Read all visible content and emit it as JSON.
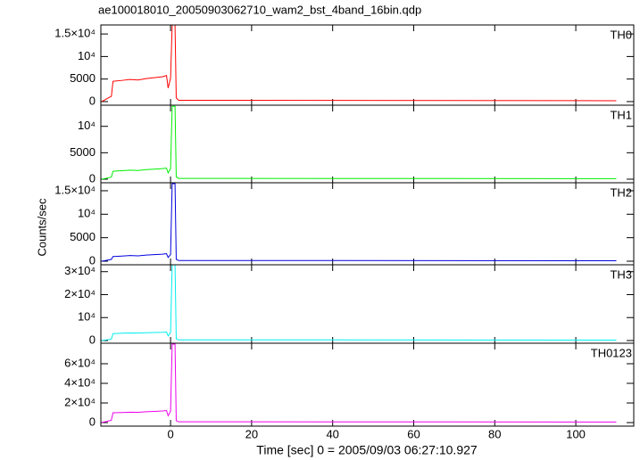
{
  "title": "ae100018010_20050903062710_wam2_bst_4band_16bin.qdp",
  "y_label": "Counts/sec",
  "x_label": "Time [sec] 0 = 2005/09/03 06:27:10.927",
  "chart_data": [
    {
      "type": "line",
      "xlim": [
        -17.2,
        114.3
      ],
      "xticks": [
        0,
        20,
        40,
        60,
        80,
        100
      ],
      "ylim": [
        -800,
        17000
      ],
      "yticks": [
        0,
        5000,
        {
          "value": 10000,
          "label": "10⁴"
        },
        {
          "value": 15000,
          "label": "1.5×10⁴"
        }
      ],
      "x": [
        -17,
        -15,
        -14.6,
        -14.2,
        -12,
        -10,
        -8,
        -6,
        -4,
        -2,
        -1,
        -0.6,
        0,
        0.4,
        1.1,
        1.4,
        2,
        110
      ],
      "series": [
        {
          "name": "TH0",
          "color": "#ff0000",
          "values": [
            0,
            1000,
            1200,
            4500,
            4700,
            4900,
            4800,
            5100,
            5300,
            5500,
            5800,
            3000,
            5200,
            17000,
            17000,
            800,
            300,
            200
          ]
        }
      ]
    },
    {
      "type": "line",
      "xlim": [
        -17.2,
        114.3
      ],
      "xticks": [
        0,
        20,
        40,
        60,
        80,
        100
      ],
      "ylim": [
        -680,
        14000
      ],
      "yticks": [
        0,
        5000,
        {
          "value": 10000,
          "label": "10⁴"
        }
      ],
      "x": [
        -17,
        -15,
        -14.6,
        -14.2,
        -12,
        -10,
        -8,
        -6,
        -4,
        -2,
        -1,
        -0.6,
        0,
        0.4,
        1.1,
        1.4,
        2,
        110
      ],
      "series": [
        {
          "name": "TH1",
          "color": "#00ee00",
          "values": [
            0,
            300,
            400,
            1500,
            1600,
            1700,
            1650,
            1800,
            1900,
            2000,
            2100,
            1200,
            2000,
            13800,
            13800,
            400,
            150,
            100
          ]
        }
      ]
    },
    {
      "type": "line",
      "xlim": [
        -17.2,
        114.3
      ],
      "xticks": [
        0,
        20,
        40,
        60,
        80,
        100
      ],
      "ylim": [
        -760,
        16700
      ],
      "yticks": [
        0,
        5000,
        {
          "value": 10000,
          "label": "10⁴"
        },
        {
          "value": 15000,
          "label": "1.5×10⁴"
        }
      ],
      "x": [
        -17,
        -15,
        -14.6,
        -14.2,
        -12,
        -10,
        -8,
        -6,
        -4,
        -2,
        -1,
        -0.6,
        0,
        0.4,
        1.1,
        1.4,
        2,
        110
      ],
      "series": [
        {
          "name": "TH2",
          "color": "#0000dd",
          "values": [
            0,
            300,
            400,
            1000,
            1100,
            1200,
            1150,
            1300,
            1400,
            1500,
            1600,
            800,
            1400,
            16500,
            16500,
            400,
            150,
            100
          ]
        }
      ]
    },
    {
      "type": "line",
      "xlim": [
        -17.2,
        114.3
      ],
      "xticks": [
        0,
        20,
        40,
        60,
        80,
        100
      ],
      "ylim": [
        -1170,
        33000
      ],
      "yticks": [
        0,
        {
          "value": 10000,
          "label": "10⁴"
        },
        {
          "value": 20000,
          "label": "2×10⁴"
        },
        {
          "value": 30000,
          "label": "3×10⁴"
        }
      ],
      "x": [
        -17,
        -15,
        -14.6,
        -14.2,
        -12,
        -10,
        -8,
        -6,
        -4,
        -2,
        -1,
        -0.6,
        0,
        0.4,
        1.1,
        1.4,
        2,
        110
      ],
      "series": [
        {
          "name": "TH3",
          "color": "#00eeee",
          "values": [
            0,
            500,
            700,
            3000,
            3200,
            3300,
            3250,
            3400,
            3500,
            3600,
            3700,
            2000,
            3500,
            33000,
            33000,
            700,
            300,
            200
          ]
        }
      ]
    },
    {
      "type": "line",
      "xlim": [
        -17.2,
        114.3
      ],
      "xticks": [
        0,
        20,
        40,
        60,
        80,
        100
      ],
      "ylim": [
        -3600,
        80900
      ],
      "yticks": [
        0,
        {
          "value": 20000,
          "label": "2×10⁴"
        },
        {
          "value": 40000,
          "label": "4×10⁴"
        },
        {
          "value": 60000,
          "label": "6×10⁴"
        }
      ],
      "x": [
        -17,
        -15,
        -14.6,
        -14.2,
        -12,
        -10,
        -8,
        -6,
        -4,
        -2,
        -1,
        -0.6,
        0,
        0.4,
        1.1,
        1.4,
        2,
        110
      ],
      "series": [
        {
          "name": "TH0123",
          "color": "#ee00ee",
          "values": [
            0,
            2000,
            2500,
            10000,
            10300,
            10600,
            10500,
            11000,
            11400,
            11800,
            12300,
            7000,
            11500,
            80000,
            80000,
            2000,
            800,
            600
          ]
        }
      ]
    }
  ]
}
